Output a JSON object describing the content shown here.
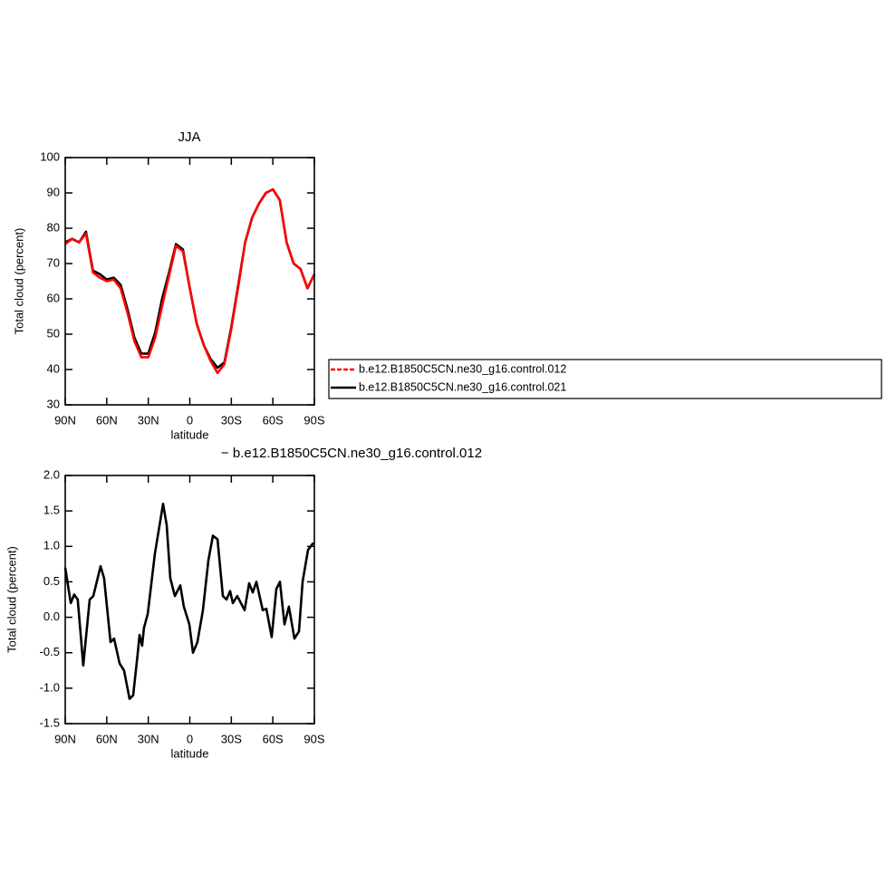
{
  "chart_data": [
    {
      "type": "line",
      "title": "JJA",
      "xlabel": "latitude",
      "ylabel": "Total cloud (percent)",
      "x": [
        90,
        85,
        80,
        75,
        70,
        65,
        60,
        55,
        50,
        45,
        40,
        35,
        30,
        25,
        20,
        15,
        10,
        5,
        0,
        -5,
        -10,
        -15,
        -20,
        -25,
        -30,
        -35,
        -40,
        -45,
        -50,
        -55,
        -60,
        -65,
        -70,
        -75,
        -80,
        -85,
        -90
      ],
      "xlim": [
        90,
        -90
      ],
      "xticks": [
        {
          "value": 90,
          "label": "90N"
        },
        {
          "value": 60,
          "label": "60N"
        },
        {
          "value": 30,
          "label": "30N"
        },
        0,
        {
          "value": -30,
          "label": "30S"
        },
        {
          "value": -60,
          "label": "60S"
        },
        {
          "value": -90,
          "label": "90S"
        }
      ],
      "ylim": [
        30,
        100
      ],
      "yticks": [
        30,
        40,
        50,
        60,
        70,
        80,
        90,
        100
      ],
      "legend": "outside-right",
      "series": [
        {
          "name": "b.e12.B1850C5CN.ne30_g16.control.012",
          "color": "#ff0000",
          "dashed": true,
          "values": [
            75.5,
            77,
            76,
            78.5,
            67.5,
            66,
            65,
            65.5,
            63,
            56,
            48,
            43.5,
            43.5,
            49,
            58,
            66.5,
            75,
            73.5,
            63,
            53,
            47,
            42.5,
            39,
            41.5,
            51.5,
            63.5,
            76,
            83,
            87,
            90,
            91,
            88,
            76,
            70,
            68.5,
            63,
            67
          ]
        },
        {
          "name": "b.e12.B1850C5CN.ne30_g16.control.021",
          "color": "#000000",
          "dashed": false,
          "values": [
            76,
            77,
            76,
            79,
            68,
            67,
            65.5,
            66,
            64,
            57,
            49,
            44.5,
            44.5,
            50.5,
            60,
            67.5,
            75.5,
            74,
            63,
            53,
            47,
            43,
            40.5,
            42,
            52,
            64,
            76,
            83,
            87,
            90,
            91,
            88,
            76,
            70,
            68.5,
            63,
            67
          ]
        }
      ]
    },
    {
      "type": "line",
      "title": "− b.e12.B1850C5CN.ne30_g16.control.012",
      "xlabel": "latitude",
      "ylabel": "Total cloud (percent)",
      "x": [
        90,
        86,
        83.5,
        81,
        77,
        72.3,
        69.7,
        64.5,
        61.9,
        57.3,
        54.7,
        50.7,
        47.5,
        43.5,
        40.9,
        37.6,
        36.3,
        34.4,
        33.1,
        30.4,
        25.2,
        19.3,
        16.7,
        14.1,
        10.8,
        6.9,
        4.3,
        0.3,
        -2.3,
        -5.5,
        -9.5,
        -13.4,
        -16.7,
        -20,
        -23.9,
        -26.5,
        -29.1,
        -31.1,
        -34.3,
        -39.6,
        -42.9,
        -45.5,
        -48.1,
        -52.7,
        -55.3,
        -59.2,
        -62.5,
        -65.1,
        -68.4,
        -71.6,
        -75.6,
        -78.9,
        -81.5,
        -85.4,
        -89.3
      ],
      "values": [
        0.7,
        0.2,
        0.32,
        0.25,
        -0.68,
        0.25,
        0.3,
        0.72,
        0.55,
        -0.35,
        -0.3,
        -0.65,
        -0.75,
        -1.15,
        -1.1,
        -0.5,
        -0.25,
        -0.4,
        -0.15,
        0.05,
        0.9,
        1.6,
        1.3,
        0.55,
        0.3,
        0.45,
        0.15,
        -0.1,
        -0.5,
        -0.35,
        0.1,
        0.8,
        1.15,
        1.1,
        0.3,
        0.25,
        0.37,
        0.2,
        0.3,
        0.1,
        0.48,
        0.35,
        0.5,
        0.1,
        0.12,
        -0.28,
        0.4,
        0.5,
        -0.1,
        0.15,
        -0.3,
        -0.2,
        0.5,
        0.95,
        1.05
      ],
      "color": "#000000",
      "xlim": [
        90,
        -90
      ],
      "xticks": [
        {
          "value": 90,
          "label": "90N"
        },
        {
          "value": 60,
          "label": "60N"
        },
        {
          "value": 30,
          "label": "30N"
        },
        0,
        {
          "value": -30,
          "label": "30S"
        },
        {
          "value": -60,
          "label": "60S"
        },
        {
          "value": -90,
          "label": "90S"
        }
      ],
      "ylim": [
        -1.5,
        2
      ],
      "yticks": [
        {
          "value": -1.5,
          "label": "-1.5"
        },
        {
          "value": -1,
          "label": "-1.0"
        },
        {
          "value": -0.5,
          "label": "-0.5"
        },
        {
          "value": 0,
          "label": "0.0"
        },
        {
          "value": 0.5,
          "label": "0.5"
        },
        {
          "value": 1,
          "label": "1.0"
        },
        {
          "value": 1.5,
          "label": "1.5"
        },
        {
          "value": 2,
          "label": "2.0"
        }
      ]
    }
  ]
}
